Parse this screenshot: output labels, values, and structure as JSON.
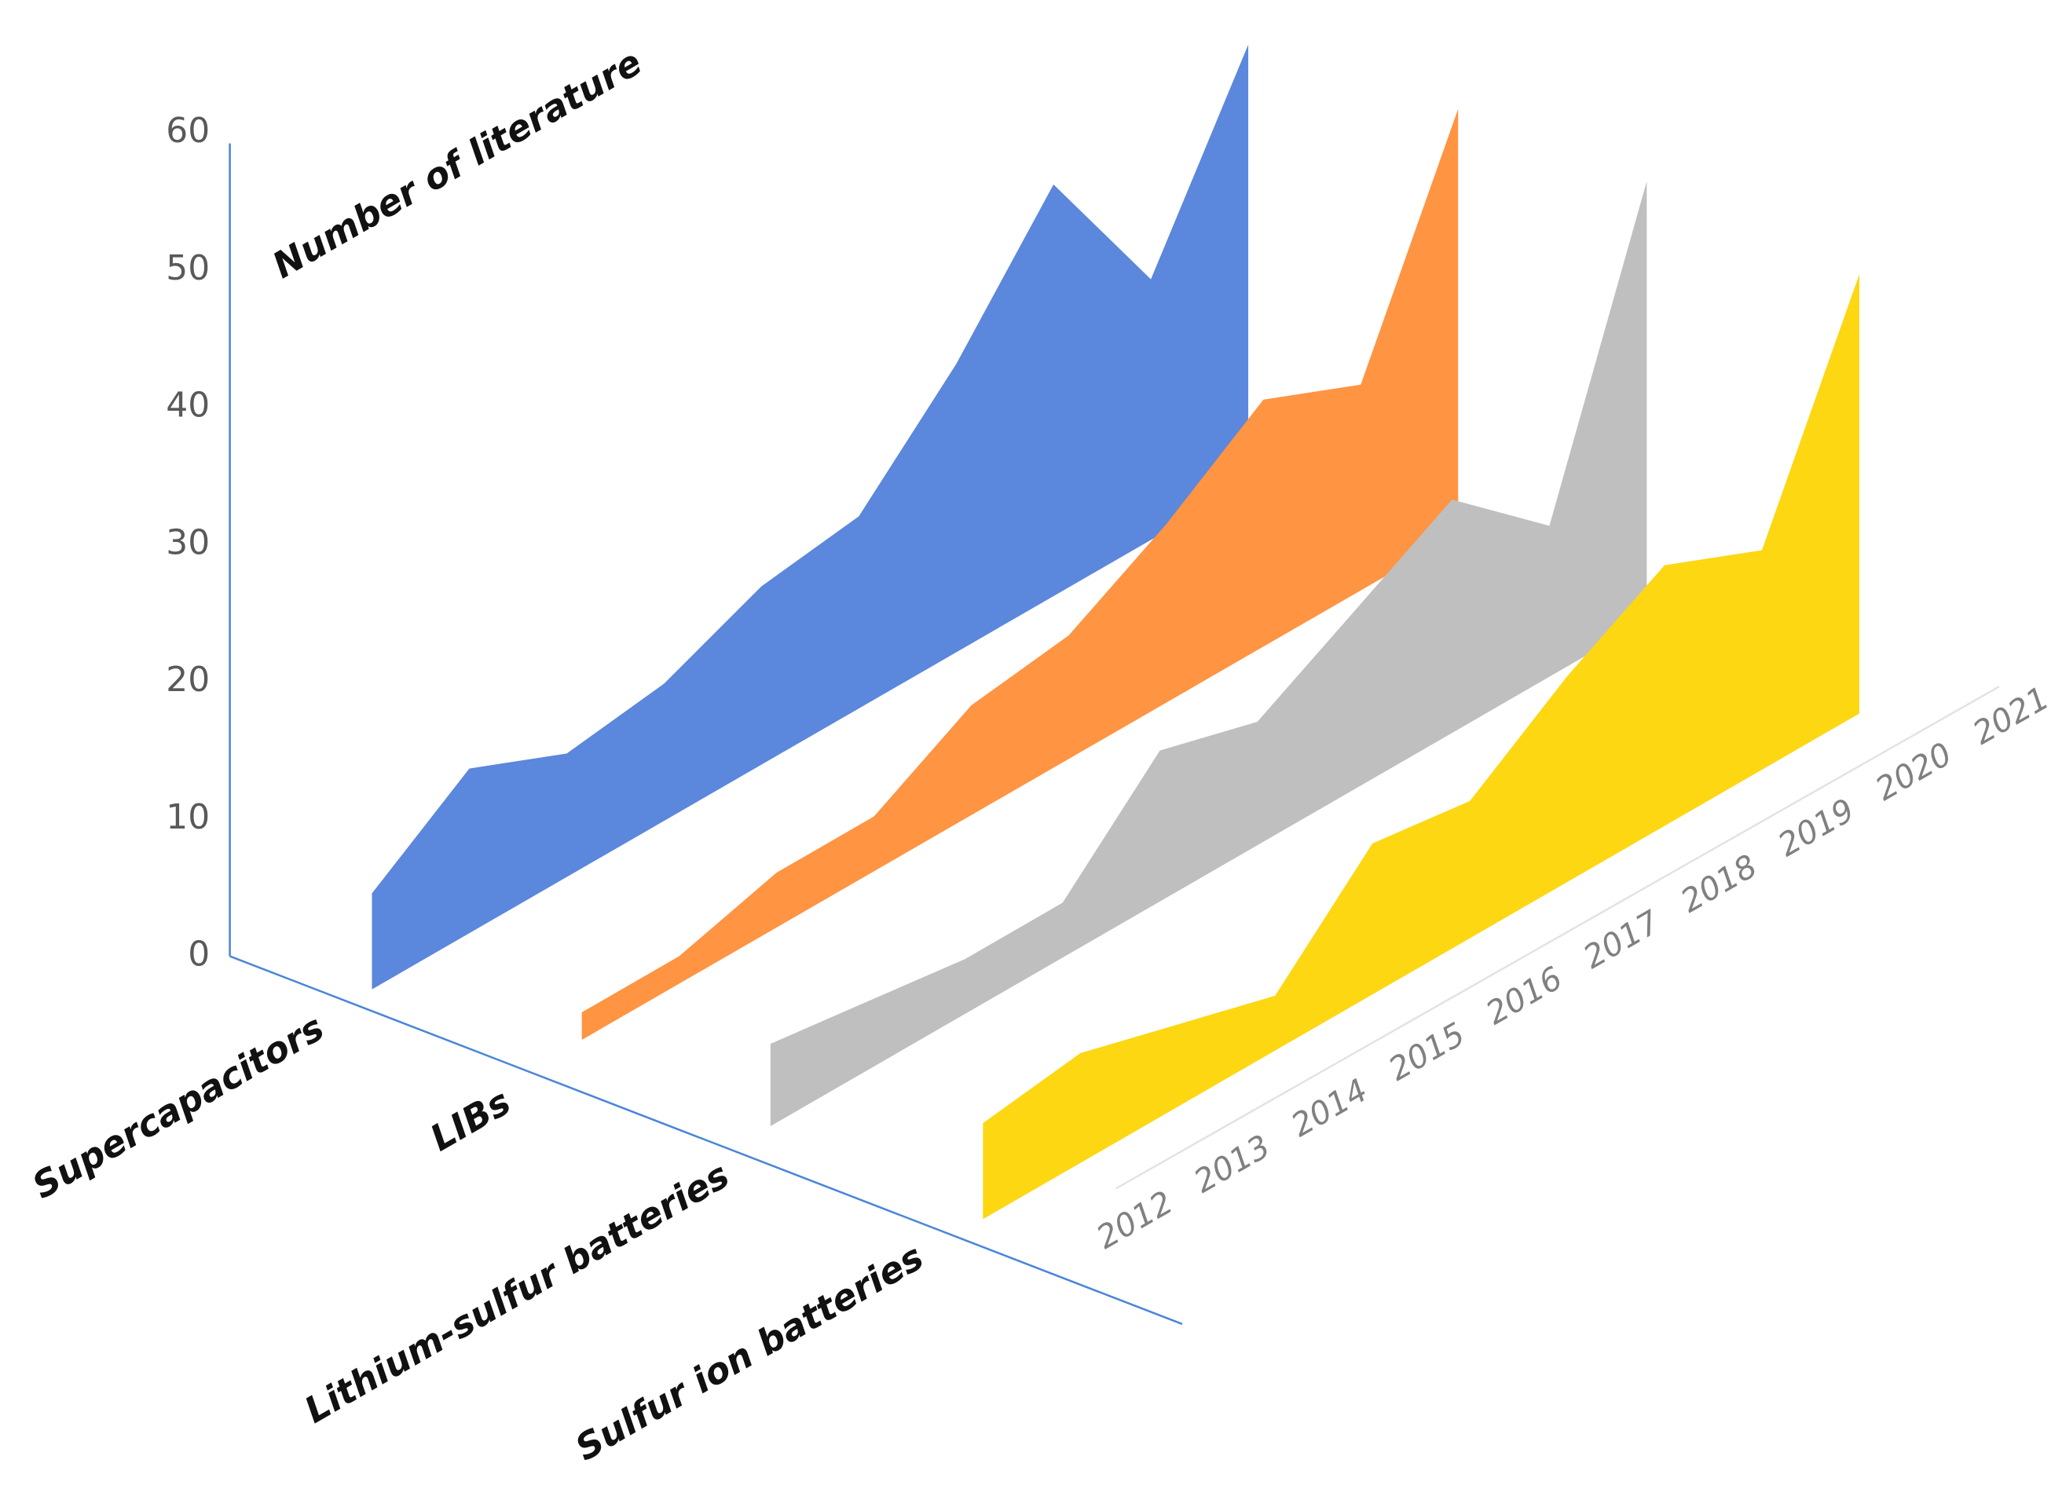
{
  "chart_data": {
    "type": "area3d",
    "y_label": "Number of literature",
    "categories": [
      "2012",
      "2013",
      "2014",
      "2015",
      "2016",
      "2017",
      "2018",
      "2019",
      "2020",
      "2021"
    ],
    "ylim": [
      0,
      60
    ],
    "yticks": [
      0,
      10,
      20,
      30,
      40,
      50,
      60
    ],
    "grid": false,
    "series": [
      {
        "name": "Supercapacitors",
        "color": "#5b87dc",
        "values": [
          7,
          12,
          9,
          10,
          13,
          14,
          21,
          30,
          19,
          32
        ]
      },
      {
        "name": "LIBs",
        "color": "#ff9442",
        "values": [
          2,
          2,
          4,
          4,
          8,
          9,
          13,
          18,
          15,
          31
        ]
      },
      {
        "name": "Lithium-sulfur batteries",
        "color": "#bfbfbf",
        "values": [
          6,
          5,
          4,
          4,
          11,
          9,
          13,
          17,
          11,
          32
        ]
      },
      {
        "name": "Sulfur ion batteries",
        "color": "#fdd712",
        "values": [
          7,
          8,
          6,
          4,
          11,
          10,
          15,
          19,
          16,
          32
        ]
      }
    ]
  }
}
